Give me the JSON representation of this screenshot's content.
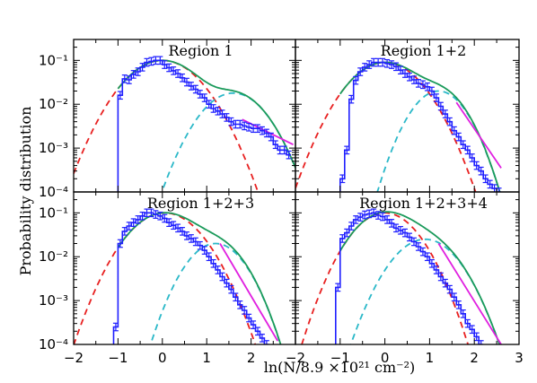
{
  "chart_data": {
    "type": "line",
    "xlabel": "ln(N/8.9 ×10²¹ cm⁻²)",
    "ylabel": "Probability distribution",
    "xlim": [
      -2,
      3
    ],
    "ylim": [
      0.0001,
      0.3
    ],
    "yscale": "log",
    "x_ticks": [
      "−2",
      "−1",
      "0",
      "1",
      "2"
    ],
    "x_ticks_last": [
      "−2",
      "−1",
      "0",
      "1",
      "2",
      "3"
    ],
    "y_ticks": [
      "10⁻¹",
      "10⁻²",
      "10⁻³",
      "10⁻⁴"
    ],
    "colors": {
      "histogram": "#1f1fff",
      "gauss_low": "#e82020",
      "gauss_high": "#2ab8c8",
      "total_fit": "#1a9a5a",
      "powerlaw": "#e020e0"
    },
    "panels": [
      {
        "title": "Region 1",
        "hist": {
          "x0": -0.95,
          "dx": 0.1,
          "values": [
            0.016,
            0.038,
            0.036,
            0.048,
            0.055,
            0.07,
            0.09,
            0.095,
            0.1,
            0.1,
            0.08,
            0.068,
            0.058,
            0.05,
            0.04,
            0.032,
            0.026,
            0.022,
            0.017,
            0.014,
            0.01,
            0.008,
            0.007,
            0.006,
            0.005,
            0.004,
            0.0035,
            0.0035,
            0.0032,
            0.003,
            0.0028,
            0.0028,
            0.0025,
            0.0022,
            0.0018,
            0.0012,
            0.0009,
            0.0009,
            0.0007
          ]
        },
        "gauss_low": {
          "mu": 0.0,
          "sigma": 0.58,
          "peak": 0.1
        },
        "gauss_high": {
          "mu": 1.6,
          "sigma": 0.5,
          "peak": 0.018
        },
        "powerlaw": {
          "x_start": 1.8,
          "x_end": 2.95,
          "y_start": 0.0045,
          "y_end": 0.0012
        }
      },
      {
        "title": "Region 1+2",
        "hist": {
          "x0": -0.95,
          "dx": 0.1,
          "values": [
            0.0002,
            0.0009,
            0.013,
            0.035,
            0.055,
            0.07,
            0.08,
            0.09,
            0.09,
            0.09,
            0.085,
            0.08,
            0.072,
            0.06,
            0.05,
            0.042,
            0.036,
            0.03,
            0.028,
            0.025,
            0.02,
            0.014,
            0.009,
            0.006,
            0.004,
            0.0025,
            0.0018,
            0.0012,
            0.0009,
            0.0006,
            0.0004,
            0.0003,
            0.0002,
            0.00015,
            0.00012,
            0.0001
          ]
        },
        "gauss_low": {
          "mu": 0.0,
          "sigma": 0.55,
          "peak": 0.09
        },
        "gauss_high": {
          "mu": 1.2,
          "sigma": 0.42,
          "peak": 0.02
        },
        "powerlaw": {
          "x_start": 1.6,
          "x_end": 2.6,
          "y_start": 0.011,
          "y_end": 0.00035
        }
      },
      {
        "title": "Region 1+2+3",
        "hist": {
          "x0": -1.05,
          "dx": 0.1,
          "values": [
            0.00025,
            0.02,
            0.038,
            0.05,
            0.06,
            0.07,
            0.085,
            0.1,
            0.1,
            0.092,
            0.085,
            0.075,
            0.06,
            0.052,
            0.045,
            0.038,
            0.03,
            0.026,
            0.022,
            0.018,
            0.014,
            0.01,
            0.007,
            0.005,
            0.0035,
            0.0025,
            0.0018,
            0.0012,
            0.0008,
            0.0006,
            0.0004,
            0.00028,
            0.0002,
            0.00014,
            0.0001
          ]
        },
        "gauss_low": {
          "mu": 0.05,
          "sigma": 0.55,
          "peak": 0.1
        },
        "gauss_high": {
          "mu": 1.2,
          "sigma": 0.45,
          "peak": 0.02
        },
        "powerlaw": {
          "x_start": 1.3,
          "x_end": 2.6,
          "y_start": 0.02,
          "y_end": 0.00012
        }
      },
      {
        "title": "Region 1+2+3+4",
        "hist": {
          "x0": -1.05,
          "dx": 0.1,
          "values": [
            0.002,
            0.026,
            0.035,
            0.05,
            0.07,
            0.08,
            0.09,
            0.095,
            0.1,
            0.088,
            0.082,
            0.07,
            0.058,
            0.045,
            0.04,
            0.035,
            0.028,
            0.022,
            0.017,
            0.013,
            0.01,
            0.007,
            0.005,
            0.0035,
            0.0025,
            0.0018,
            0.0012,
            0.0008,
            0.0005,
            0.0003,
            0.00022,
            0.00015,
            0.0001
          ]
        },
        "gauss_low": {
          "mu": 0.0,
          "sigma": 0.5,
          "peak": 0.1
        },
        "gauss_high": {
          "mu": 0.9,
          "sigma": 0.5,
          "peak": 0.025
        },
        "powerlaw": {
          "x_start": 1.2,
          "x_end": 2.6,
          "y_start": 0.02,
          "y_end": 0.0001
        }
      }
    ]
  }
}
